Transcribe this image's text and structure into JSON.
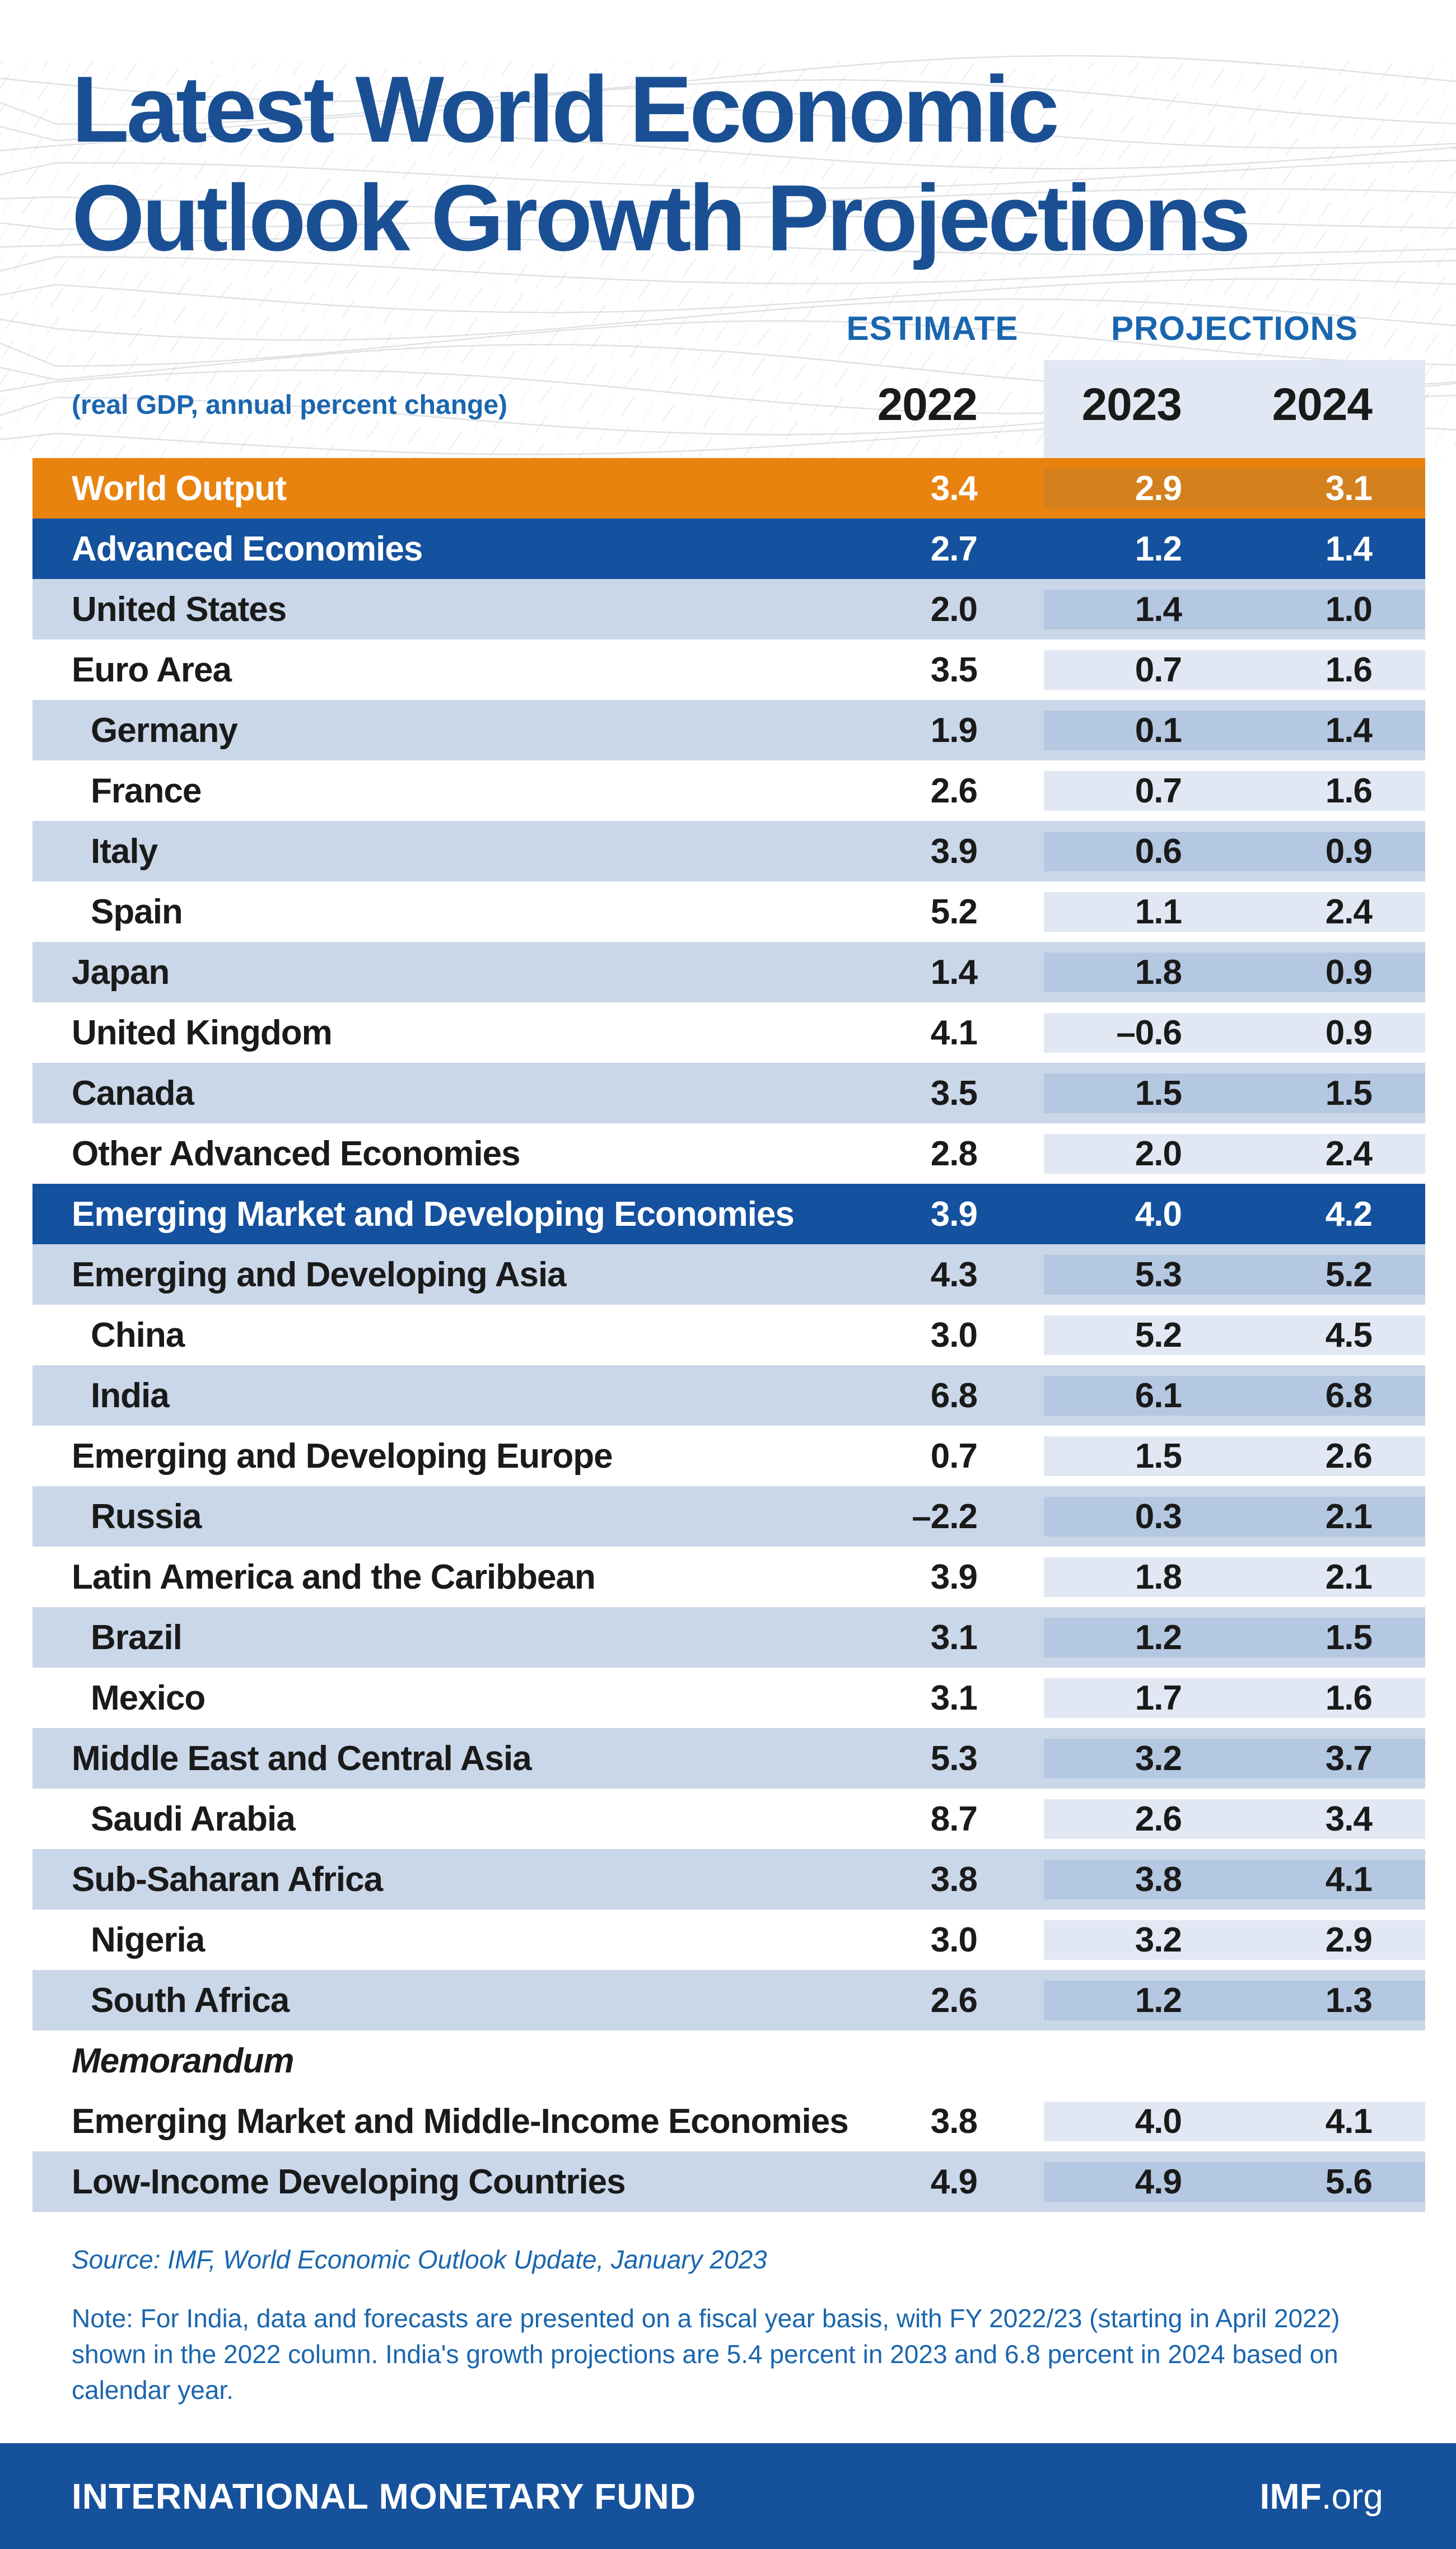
{
  "title": {
    "lines": [
      "Latest World Economic",
      "Outlook Growth Projections"
    ]
  },
  "header": {
    "estimate_label": "ESTIMATE",
    "projections_label": "PROJECTIONS",
    "subtitle": "(real GDP, annual percent change)"
  },
  "chart_data": {
    "type": "table",
    "title": "Latest World Economic Outlook Growth Projections",
    "subtitle": "(real GDP, annual percent change)",
    "columns": [
      "2022",
      "2023",
      "2024"
    ],
    "column_groups": {
      "estimate": [
        "2022"
      ],
      "projections": [
        "2023",
        "2024"
      ]
    },
    "rows": [
      {
        "label": "World Output",
        "type": "world",
        "indent": false,
        "italic": false,
        "shaded": false,
        "values": [
          "3.4",
          "2.9",
          "3.1"
        ]
      },
      {
        "label": "Advanced Economies",
        "type": "group",
        "indent": false,
        "italic": false,
        "shaded": false,
        "values": [
          "2.7",
          "1.2",
          "1.4"
        ]
      },
      {
        "label": "United States",
        "type": "region",
        "indent": false,
        "italic": false,
        "shaded": true,
        "values": [
          "2.0",
          "1.4",
          "1.0"
        ]
      },
      {
        "label": "Euro Area",
        "type": "region",
        "indent": false,
        "italic": false,
        "shaded": false,
        "values": [
          "3.5",
          "0.7",
          "1.6"
        ]
      },
      {
        "label": "Germany",
        "type": "country",
        "indent": true,
        "italic": false,
        "shaded": true,
        "values": [
          "1.9",
          "0.1",
          "1.4"
        ]
      },
      {
        "label": "France",
        "type": "country",
        "indent": true,
        "italic": false,
        "shaded": false,
        "values": [
          "2.6",
          "0.7",
          "1.6"
        ]
      },
      {
        "label": "Italy",
        "type": "country",
        "indent": true,
        "italic": false,
        "shaded": true,
        "values": [
          "3.9",
          "0.6",
          "0.9"
        ]
      },
      {
        "label": "Spain",
        "type": "country",
        "indent": true,
        "italic": false,
        "shaded": false,
        "values": [
          "5.2",
          "1.1",
          "2.4"
        ]
      },
      {
        "label": "Japan",
        "type": "region",
        "indent": false,
        "italic": false,
        "shaded": true,
        "values": [
          "1.4",
          "1.8",
          "0.9"
        ]
      },
      {
        "label": "United Kingdom",
        "type": "region",
        "indent": false,
        "italic": false,
        "shaded": false,
        "values": [
          "4.1",
          "–0.6",
          "0.9"
        ]
      },
      {
        "label": "Canada",
        "type": "region",
        "indent": false,
        "italic": false,
        "shaded": true,
        "values": [
          "3.5",
          "1.5",
          "1.5"
        ]
      },
      {
        "label": "Other Advanced Economies",
        "type": "region",
        "indent": false,
        "italic": false,
        "shaded": false,
        "values": [
          "2.8",
          "2.0",
          "2.4"
        ]
      },
      {
        "label": "Emerging Market and Developing Economies",
        "type": "group",
        "indent": false,
        "italic": false,
        "shaded": false,
        "values": [
          "3.9",
          "4.0",
          "4.2"
        ]
      },
      {
        "label": "Emerging and Developing Asia",
        "type": "region",
        "indent": false,
        "italic": false,
        "shaded": true,
        "values": [
          "4.3",
          "5.3",
          "5.2"
        ]
      },
      {
        "label": "China",
        "type": "country",
        "indent": true,
        "italic": false,
        "shaded": false,
        "values": [
          "3.0",
          "5.2",
          "4.5"
        ]
      },
      {
        "label": "India",
        "type": "country",
        "indent": true,
        "italic": false,
        "shaded": true,
        "values": [
          "6.8",
          "6.1",
          "6.8"
        ]
      },
      {
        "label": "Emerging and Developing Europe",
        "type": "region",
        "indent": false,
        "italic": false,
        "shaded": false,
        "values": [
          "0.7",
          "1.5",
          "2.6"
        ]
      },
      {
        "label": "Russia",
        "type": "country",
        "indent": true,
        "italic": false,
        "shaded": true,
        "values": [
          "–2.2",
          "0.3",
          "2.1"
        ]
      },
      {
        "label": "Latin America and the Caribbean",
        "type": "region",
        "indent": false,
        "italic": false,
        "shaded": false,
        "values": [
          "3.9",
          "1.8",
          "2.1"
        ]
      },
      {
        "label": "Brazil",
        "type": "country",
        "indent": true,
        "italic": false,
        "shaded": true,
        "values": [
          "3.1",
          "1.2",
          "1.5"
        ]
      },
      {
        "label": "Mexico",
        "type": "country",
        "indent": true,
        "italic": false,
        "shaded": false,
        "values": [
          "3.1",
          "1.7",
          "1.6"
        ]
      },
      {
        "label": "Middle East and Central Asia",
        "type": "region",
        "indent": false,
        "italic": false,
        "shaded": true,
        "values": [
          "5.3",
          "3.2",
          "3.7"
        ]
      },
      {
        "label": "Saudi Arabia",
        "type": "country",
        "indent": true,
        "italic": false,
        "shaded": false,
        "values": [
          "8.7",
          "2.6",
          "3.4"
        ]
      },
      {
        "label": "Sub-Saharan Africa",
        "type": "region",
        "indent": false,
        "italic": false,
        "shaded": true,
        "values": [
          "3.8",
          "3.8",
          "4.1"
        ]
      },
      {
        "label": "Nigeria",
        "type": "country",
        "indent": true,
        "italic": false,
        "shaded": false,
        "values": [
          "3.0",
          "3.2",
          "2.9"
        ]
      },
      {
        "label": "South Africa",
        "type": "country",
        "indent": true,
        "italic": false,
        "shaded": true,
        "values": [
          "2.6",
          "1.2",
          "1.3"
        ]
      },
      {
        "label": "Memorandum",
        "type": "memo_header",
        "indent": false,
        "italic": true,
        "shaded": false,
        "values": [
          "",
          "",
          ""
        ]
      },
      {
        "label": "Emerging Market and Middle-Income Economies",
        "type": "region",
        "indent": false,
        "italic": false,
        "shaded": false,
        "values": [
          "3.8",
          "4.0",
          "4.1"
        ]
      },
      {
        "label": "Low-Income Developing Countries",
        "type": "region",
        "indent": false,
        "italic": false,
        "shaded": true,
        "values": [
          "4.9",
          "4.9",
          "5.6"
        ]
      }
    ]
  },
  "source": {
    "prefix": "Source: IMF, ",
    "publication": "World Economic Outlook Update",
    "suffix": ", January 2023"
  },
  "note": {
    "text": "Note: For India, data and forecasts are presented on a fiscal year basis, with FY 2022/23 (starting in April 2022) shown in the 2022 column. India's growth projections are 5.4 percent in 2023 and 6.8 percent in 2024 based on calendar year."
  },
  "footer": {
    "org_name": "INTERNATIONAL MONETARY FUND",
    "site_bold": "IMF",
    "site_suffix": ".org"
  },
  "colors": {
    "title_blue": "#1a5093",
    "section_blue": "#14519e",
    "footer_blue": "#16519c",
    "header_text_blue": "#1a66ae",
    "alt_row": "#cad7e9",
    "alt_row_projection": "#b5c8e1",
    "white_row_projection": "#e2e8f3",
    "orange": "#e8830f",
    "orange_projection": "#d4811d",
    "text_color": "#1a1a1a",
    "mesh_gray": "#d7dade"
  }
}
